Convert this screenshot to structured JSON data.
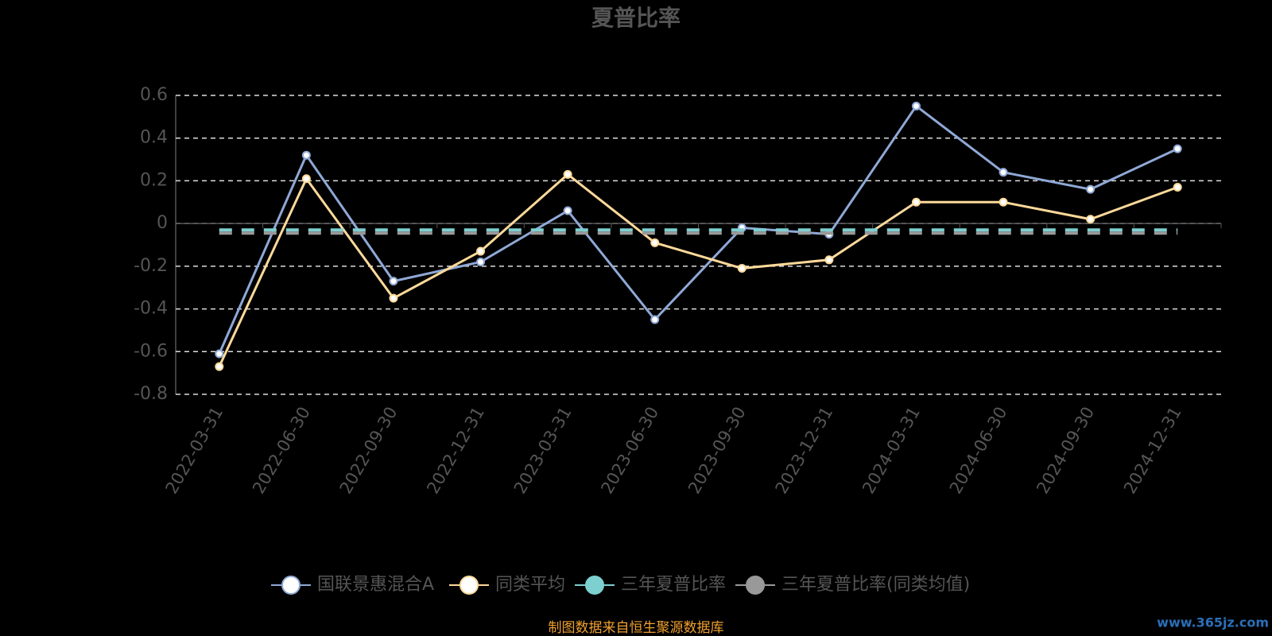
{
  "chart_data": {
    "type": "line",
    "title": "夏普比率",
    "categories": [
      "2022-03-31",
      "2022-06-30",
      "2022-09-30",
      "2022-12-31",
      "2023-03-31",
      "2023-06-30",
      "2023-09-30",
      "2023-12-31",
      "2024-03-31",
      "2024-06-30",
      "2024-09-30",
      "2024-12-31"
    ],
    "series": [
      {
        "name": "国联景惠混合A",
        "color": "#8fa8d6",
        "values": [
          -0.61,
          0.32,
          -0.27,
          -0.18,
          0.06,
          -0.45,
          -0.02,
          -0.05,
          0.55,
          0.24,
          0.16,
          0.35
        ]
      },
      {
        "name": "同类平均",
        "color": "#fdd99a",
        "values": [
          -0.67,
          0.21,
          -0.35,
          -0.13,
          0.23,
          -0.09,
          -0.21,
          -0.17,
          0.1,
          0.1,
          0.02,
          0.17
        ]
      },
      {
        "name": "三年夏普比率",
        "color": "#7ecfd0",
        "dashed": true,
        "values": [
          -0.03,
          -0.03,
          -0.03,
          -0.03,
          -0.03,
          -0.03,
          -0.03,
          -0.03,
          -0.03,
          -0.03,
          -0.03,
          -0.03
        ]
      },
      {
        "name": "三年夏普比率(同类均值)",
        "color": "#999999",
        "dashed": true,
        "values": [
          -0.045,
          -0.045,
          -0.045,
          -0.045,
          -0.045,
          -0.045,
          -0.045,
          -0.045,
          -0.045,
          -0.045,
          -0.045,
          -0.045
        ]
      }
    ],
    "ylim": [
      -0.8,
      0.6
    ],
    "yticks": [
      -0.8,
      -0.6,
      -0.4,
      -0.2,
      0,
      0.2,
      0.4,
      0.6
    ],
    "grid": true,
    "source": "制图数据来自恒生聚源数据库",
    "watermark": "www.365jz.com"
  }
}
